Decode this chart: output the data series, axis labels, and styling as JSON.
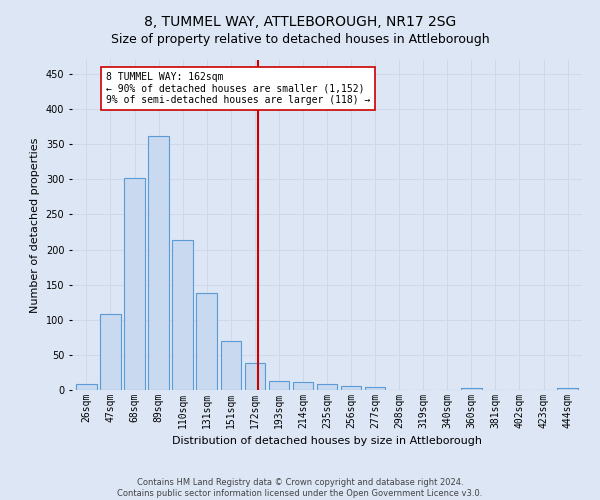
{
  "title": "8, TUMMEL WAY, ATTLEBOROUGH, NR17 2SG",
  "subtitle": "Size of property relative to detached houses in Attleborough",
  "xlabel": "Distribution of detached houses by size in Attleborough",
  "ylabel": "Number of detached properties",
  "footer_line1": "Contains HM Land Registry data © Crown copyright and database right 2024.",
  "footer_line2": "Contains public sector information licensed under the Open Government Licence v3.0.",
  "bin_labels": [
    "26sqm",
    "47sqm",
    "68sqm",
    "89sqm",
    "110sqm",
    "131sqm",
    "151sqm",
    "172sqm",
    "193sqm",
    "214sqm",
    "235sqm",
    "256sqm",
    "277sqm",
    "298sqm",
    "319sqm",
    "340sqm",
    "360sqm",
    "381sqm",
    "402sqm",
    "423sqm",
    "444sqm"
  ],
  "bar_values": [
    8,
    108,
    302,
    362,
    214,
    138,
    70,
    38,
    13,
    11,
    9,
    6,
    4,
    0,
    0,
    0,
    3,
    0,
    0,
    0,
    3
  ],
  "bar_color": "#c9d9f0",
  "bar_edge_color": "#5b9bd5",
  "vline_x_index": 7.15,
  "annotation_title": "8 TUMMEL WAY: 162sqm",
  "annotation_line2": "← 90% of detached houses are smaller (1,152)",
  "annotation_line3": "9% of semi-detached houses are larger (118) →",
  "vline_color": "#cc0000",
  "annotation_box_color": "#ffffff",
  "annotation_box_edge": "#cc0000",
  "grid_color": "#d0d8e8",
  "background_color": "#dce6f5",
  "ylim": [
    0,
    470
  ],
  "title_fontsize": 10,
  "subtitle_fontsize": 9,
  "ylabel_fontsize": 8,
  "xlabel_fontsize": 8,
  "tick_fontsize": 7,
  "footer_fontsize": 6,
  "annotation_fontsize": 7
}
